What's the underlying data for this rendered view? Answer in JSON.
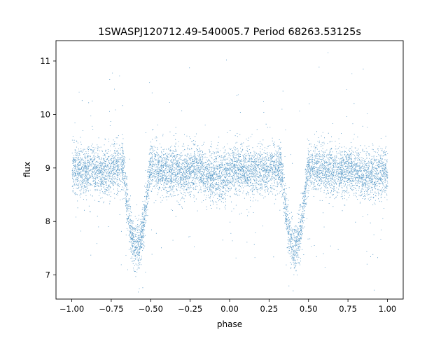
{
  "chart_data": {
    "type": "scatter",
    "title": "1SWASPJ120712.49-540005.7 Period 68263.53125s",
    "xlabel": "phase",
    "ylabel": "flux",
    "xlim": [
      -1.1,
      1.1
    ],
    "ylim": [
      6.55,
      11.38
    ],
    "xticks": [
      -1.0,
      -0.75,
      -0.5,
      -0.25,
      0.0,
      0.25,
      0.5,
      0.75,
      1.0
    ],
    "xtick_labels": [
      "−1.00",
      "−0.75",
      "−0.50",
      "−0.25",
      "0.00",
      "0.25",
      "0.50",
      "0.75",
      "1.00"
    ],
    "yticks": [
      7,
      8,
      9,
      10,
      11
    ],
    "ytick_labels": [
      "7",
      "8",
      "9",
      "10",
      "11"
    ],
    "grid": false,
    "point_color": "#1f77b4",
    "light_curve_profile": {
      "baseline_flux": 9.0,
      "scatter_sigma": 0.22,
      "primary_eclipse": {
        "phases": [
          -0.59,
          0.41
        ],
        "min_flux": 7.45,
        "half_width": 0.085
      },
      "secondary_eclipse": {
        "phases": [
          -0.09,
          0.91
        ],
        "min_flux": 8.78,
        "half_width": 0.12
      }
    }
  }
}
